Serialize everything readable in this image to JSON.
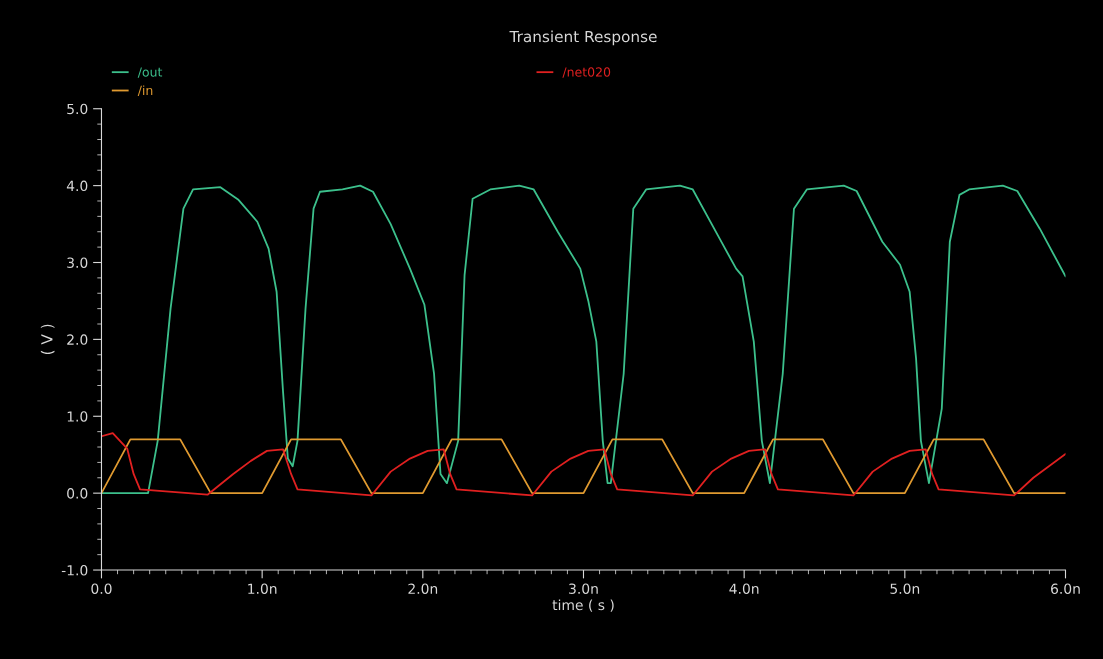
{
  "chart_data": {
    "type": "line",
    "title": "Transient Response",
    "xlabel": "time ( s )",
    "ylabel": "( V )",
    "xlim": [
      0,
      6
    ],
    "xticks": [
      {
        "value": 0,
        "label": "0.0"
      },
      {
        "value": 1,
        "label": "1.0n"
      },
      {
        "value": 2,
        "label": "2.0n"
      },
      {
        "value": 3,
        "label": "3.0n"
      },
      {
        "value": 4,
        "label": "4.0n"
      },
      {
        "value": 5,
        "label": "5.0n"
      },
      {
        "value": 6,
        "label": "6.0n"
      }
    ],
    "ylim": [
      -1,
      5
    ],
    "yticks": [
      {
        "value": -1,
        "label": "-1.0"
      },
      {
        "value": 0,
        "label": "0.0"
      },
      {
        "value": 1,
        "label": "1.0"
      },
      {
        "value": 2,
        "label": "2.0"
      },
      {
        "value": 3,
        "label": "3.0"
      },
      {
        "value": 4,
        "label": "4.0"
      },
      {
        "value": 5,
        "label": "5.0"
      }
    ],
    "grid": false,
    "legend": "top left",
    "line_style": "solid",
    "series": [
      {
        "name": "/out",
        "color": "#3cc08c",
        "x": [
          0,
          0.29,
          0.35,
          0.43,
          0.51,
          0.57,
          0.74,
          0.85,
          0.97,
          1.04,
          1.09,
          1.13,
          1.16,
          1.19,
          1.22,
          1.27,
          1.32,
          1.36,
          1.5,
          1.61,
          1.69,
          1.8,
          1.92,
          2.01,
          2.07,
          2.11,
          2.15,
          2.22,
          2.26,
          2.31,
          2.42,
          2.6,
          2.69,
          2.84,
          2.98,
          3.03,
          3.08,
          3.12,
          3.15,
          3.17,
          3.25,
          3.31,
          3.39,
          3.6,
          3.68,
          3.85,
          3.95,
          3.99,
          4.06,
          4.11,
          4.16,
          4.24,
          4.31,
          4.39,
          4.62,
          4.7,
          4.86,
          4.97,
          5.03,
          5.07,
          5.1,
          5.15,
          5.23,
          5.28,
          5.34,
          5.4,
          5.61,
          5.7,
          5.84,
          6.0
        ],
        "values": [
          0,
          0,
          0.68,
          2.4,
          3.7,
          3.95,
          3.98,
          3.82,
          3.53,
          3.18,
          2.62,
          1.32,
          0.45,
          0.35,
          0.68,
          2.4,
          3.7,
          3.92,
          3.95,
          4.0,
          3.92,
          3.5,
          2.92,
          2.45,
          1.55,
          0.25,
          0.13,
          0.68,
          2.84,
          3.83,
          3.95,
          4.0,
          3.95,
          3.4,
          2.92,
          2.5,
          1.97,
          0.68,
          0.13,
          0.13,
          1.55,
          3.7,
          3.95,
          4.0,
          3.95,
          3.3,
          2.92,
          2.82,
          1.97,
          0.68,
          0.13,
          1.55,
          3.7,
          3.95,
          4.0,
          3.93,
          3.27,
          2.97,
          2.62,
          1.75,
          0.68,
          0.13,
          1.1,
          3.27,
          3.88,
          3.95,
          4.0,
          3.93,
          3.44,
          2.82
        ]
      },
      {
        "name": "/in",
        "color": "#e09a30",
        "x": [
          0,
          0.18,
          0.49,
          0.68,
          1.0,
          1.18,
          1.49,
          1.68,
          2.0,
          2.18,
          2.49,
          2.68,
          3.0,
          3.18,
          3.49,
          3.68,
          4.0,
          4.18,
          4.49,
          4.68,
          5.0,
          5.18,
          5.49,
          5.68,
          6.0
        ],
        "values": [
          0,
          0.7,
          0.7,
          0,
          0,
          0.7,
          0.7,
          0,
          0,
          0.7,
          0.7,
          0,
          0,
          0.7,
          0.7,
          0,
          0,
          0.7,
          0.7,
          0,
          0,
          0.7,
          0.7,
          0,
          0
        ]
      },
      {
        "name": "/net020",
        "color": "#e02020",
        "x": [
          0,
          0.07,
          0.16,
          0.2,
          0.24,
          0.66,
          0.82,
          0.93,
          1.03,
          1.13,
          1.18,
          1.22,
          1.68,
          1.8,
          1.92,
          2.03,
          2.13,
          2.17,
          2.21,
          2.68,
          2.8,
          2.92,
          3.03,
          3.13,
          3.17,
          3.21,
          3.68,
          3.8,
          3.92,
          4.03,
          4.13,
          4.17,
          4.21,
          4.68,
          4.8,
          4.92,
          5.03,
          5.13,
          5.17,
          5.21,
          5.68,
          5.8,
          6.0
        ],
        "values": [
          0.74,
          0.78,
          0.58,
          0.25,
          0.05,
          -0.02,
          0.25,
          0.42,
          0.55,
          0.57,
          0.25,
          0.05,
          -0.03,
          0.28,
          0.45,
          0.55,
          0.57,
          0.25,
          0.05,
          -0.03,
          0.28,
          0.45,
          0.55,
          0.57,
          0.25,
          0.05,
          -0.03,
          0.28,
          0.45,
          0.55,
          0.57,
          0.25,
          0.05,
          -0.03,
          0.28,
          0.45,
          0.55,
          0.57,
          0.25,
          0.05,
          -0.03,
          0.2,
          0.51
        ]
      }
    ]
  }
}
